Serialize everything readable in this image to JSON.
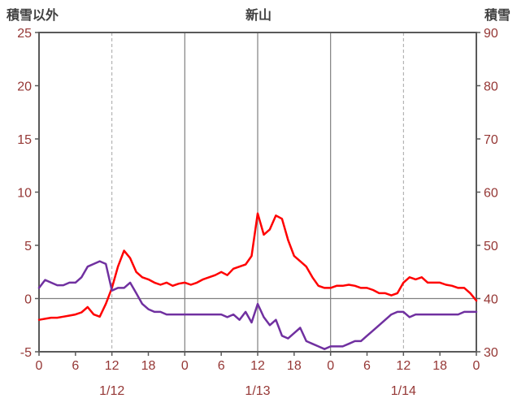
{
  "chart_data": {
    "type": "line",
    "title": "新山",
    "left_axis": {
      "label": "積雪以外",
      "min": -5,
      "max": 25,
      "ticks": [
        -5,
        0,
        5,
        10,
        15,
        20,
        25
      ]
    },
    "right_axis": {
      "label": "積雪",
      "min": 30,
      "max": 90,
      "ticks": [
        30,
        40,
        50,
        60,
        70,
        80,
        90
      ]
    },
    "x_axis": {
      "unit": "hour",
      "min_hour": 0,
      "max_hour": 72,
      "hour_ticks": [
        0,
        6,
        12,
        18,
        24,
        30,
        36,
        42,
        48,
        54,
        60,
        66,
        72
      ],
      "hour_tick_labels": [
        "0",
        "6",
        "12",
        "18",
        "0",
        "6",
        "12",
        "18",
        "0",
        "6",
        "12",
        "18",
        "0"
      ],
      "date_labels": [
        "1/12",
        "1/13",
        "1/14"
      ],
      "date_label_center_hours": [
        12,
        36,
        60
      ],
      "gridlines_solid_hours": [
        24,
        36,
        48
      ],
      "gridlines_dashed_hours": [
        12,
        60
      ],
      "zero_line_left_value": 0
    },
    "series": [
      {
        "name": "積雪以外",
        "axis": "left",
        "color": "#ff0000",
        "values": [
          -2.0,
          -1.9,
          -1.8,
          -1.8,
          -1.7,
          -1.6,
          -1.5,
          -1.3,
          -0.8,
          -1.5,
          -1.7,
          -0.5,
          1.0,
          3.0,
          4.5,
          3.8,
          2.5,
          2.0,
          1.8,
          1.5,
          1.3,
          1.5,
          1.2,
          1.4,
          1.5,
          1.3,
          1.5,
          1.8,
          2.0,
          2.2,
          2.5,
          2.2,
          2.8,
          3.0,
          3.2,
          4.0,
          8.0,
          6.0,
          6.5,
          7.8,
          7.5,
          5.5,
          4.0,
          3.5,
          3.0,
          2.0,
          1.2,
          1.0,
          1.0,
          1.2,
          1.2,
          1.3,
          1.2,
          1.0,
          1.0,
          0.8,
          0.5,
          0.5,
          0.3,
          0.5,
          1.5,
          2.0,
          1.8,
          2.0,
          1.5,
          1.5,
          1.5,
          1.3,
          1.2,
          1.0,
          1.0,
          0.5,
          -0.2
        ]
      },
      {
        "name": "積雪",
        "axis": "right",
        "color": "#7030a0",
        "values": [
          42,
          43.5,
          43,
          42.5,
          42.5,
          43,
          43,
          44,
          46,
          46.5,
          47,
          46.5,
          41.5,
          42,
          42,
          43,
          41,
          39,
          38,
          37.5,
          37.5,
          37,
          37,
          37,
          37,
          37,
          37,
          37,
          37,
          37,
          37,
          36.5,
          37,
          36,
          37.5,
          35.5,
          39,
          36.5,
          35,
          36,
          33,
          32.5,
          33.5,
          34.5,
          32,
          31.5,
          31,
          30.5,
          31,
          31,
          31,
          31.5,
          32,
          32,
          33,
          34,
          35,
          36,
          37,
          37.5,
          37.5,
          36.5,
          37,
          37,
          37,
          37,
          37,
          37,
          37,
          37,
          37.5,
          37.5,
          37.5
        ]
      }
    ],
    "styles": {
      "tick_text_color": "#953735",
      "title_color": "#404040",
      "border_color": "#595959",
      "grid_solid_color": "#808080",
      "grid_dashed_color": "#a6a6a6",
      "zero_line_color": "#808080",
      "background": "#ffffff"
    }
  }
}
